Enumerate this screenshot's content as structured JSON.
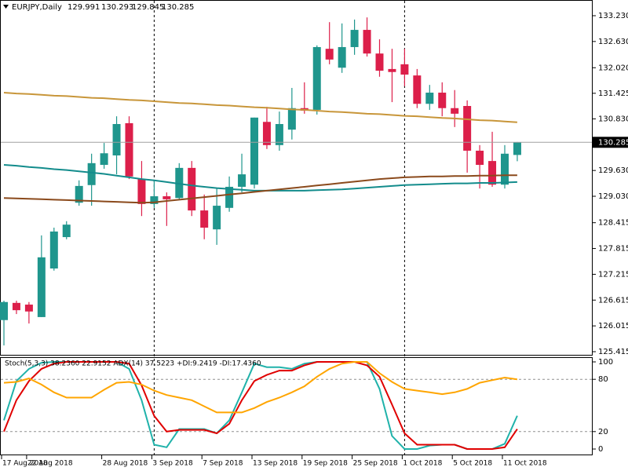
{
  "chart_data": [
    {
      "type": "candlestick",
      "title": "EURJPY,Daily",
      "categories": [
        "17 Aug 2018",
        null,
        "22 Aug 2018",
        null,
        null,
        null,
        null,
        null,
        "28 Aug 2018",
        null,
        null,
        null,
        "3 Sep 2018",
        null,
        null,
        null,
        "7 Sep 2018",
        null,
        null,
        null,
        "13 Sep 2018",
        null,
        null,
        null,
        "19 Sep 2018",
        null,
        null,
        null,
        "25 Sep 2018",
        null,
        null,
        null,
        "1 Oct 2018",
        null,
        null,
        null,
        "5 Oct 2018",
        null,
        null,
        null,
        "11 Oct 2018",
        null
      ],
      "open": [
        126.15,
        126.55,
        126.51,
        126.22,
        127.35,
        128.08,
        128.88,
        129.29,
        129.76,
        129.98,
        130.73,
        129.43,
        128.85,
        129.03,
        128.99,
        129.69,
        128.7,
        128.26,
        128.76,
        129.25,
        129.3,
        130.76,
        130.22,
        130.58,
        131.08,
        131.04,
        132.46,
        132.02,
        132.5,
        132.9,
        132.35,
        131.99,
        132.1,
        131.84,
        131.18,
        131.44,
        131.08,
        131.13,
        130.09,
        129.85,
        129.3,
        129.991
      ],
      "high": [
        126.6,
        126.6,
        126.57,
        128.12,
        128.3,
        128.45,
        129.4,
        130.02,
        130.27,
        130.89,
        130.89,
        129.85,
        129.4,
        129.12,
        129.8,
        129.85,
        129.07,
        129.21,
        129.49,
        130.02,
        130.86,
        131.11,
        131.0,
        131.55,
        131.68,
        132.54,
        133.08,
        133.05,
        133.14,
        133.19,
        132.68,
        132.46,
        132.46,
        131.99,
        131.62,
        131.68,
        131.5,
        131.26,
        130.22,
        130.53,
        130.22,
        130.293
      ],
      "low": [
        125.56,
        126.29,
        126.07,
        126.22,
        127.3,
        128.03,
        128.81,
        128.81,
        129.67,
        129.54,
        129.43,
        128.57,
        128.76,
        128.34,
        128.94,
        128.57,
        128.03,
        127.9,
        128.67,
        129.12,
        129.21,
        130.13,
        130.09,
        130.35,
        130.95,
        130.93,
        132.1,
        131.9,
        132.32,
        132.28,
        131.81,
        131.22,
        131.59,
        131.08,
        131.04,
        130.89,
        130.64,
        129.58,
        129.21,
        129.25,
        129.21,
        129.845
      ],
      "close": [
        126.57,
        126.38,
        126.35,
        127.61,
        128.21,
        128.37,
        129.27,
        129.8,
        130.03,
        130.71,
        129.49,
        128.85,
        129.03,
        128.96,
        129.69,
        128.7,
        128.3,
        128.81,
        129.25,
        129.54,
        130.86,
        130.22,
        130.71,
        131.08,
        131.02,
        132.5,
        132.21,
        132.5,
        132.9,
        132.35,
        131.95,
        131.92,
        131.86,
        131.18,
        131.44,
        131.08,
        130.95,
        130.09,
        129.76,
        129.3,
        130.02,
        130.285
      ],
      "up_color": "#1f968d",
      "down_color": "#dc1f4a",
      "series": [
        {
          "color": "#c8963a",
          "values": [
            131.44,
            131.42,
            131.41,
            131.39,
            131.37,
            131.36,
            131.34,
            131.32,
            131.31,
            131.29,
            131.27,
            131.26,
            131.24,
            131.22,
            131.2,
            131.19,
            131.17,
            131.15,
            131.14,
            131.12,
            131.1,
            131.09,
            131.07,
            131.05,
            131.04,
            131.02,
            131.0,
            130.99,
            130.97,
            130.95,
            130.94,
            130.92,
            130.9,
            130.89,
            130.87,
            130.85,
            130.84,
            130.82,
            130.8,
            130.79,
            130.77,
            130.75
          ]
        },
        {
          "color": "#138c8c",
          "values": [
            129.76,
            129.74,
            129.71,
            129.69,
            129.66,
            129.64,
            129.61,
            129.58,
            129.55,
            129.51,
            129.47,
            129.43,
            129.4,
            129.36,
            129.32,
            129.28,
            129.25,
            129.22,
            129.2,
            129.18,
            129.16,
            129.16,
            129.16,
            129.16,
            129.16,
            129.17,
            129.18,
            129.19,
            129.21,
            129.23,
            129.25,
            129.27,
            129.29,
            129.3,
            129.31,
            129.32,
            129.33,
            129.33,
            129.34,
            129.34,
            129.35,
            129.36
          ]
        },
        {
          "color": "#8b4a1c",
          "values": [
            128.99,
            128.98,
            128.97,
            128.96,
            128.95,
            128.94,
            128.93,
            128.92,
            128.91,
            128.9,
            128.89,
            128.88,
            128.89,
            128.92,
            128.95,
            128.98,
            129.01,
            129.04,
            129.07,
            129.1,
            129.13,
            129.16,
            129.19,
            129.22,
            129.25,
            129.28,
            129.31,
            129.34,
            129.37,
            129.4,
            129.43,
            129.45,
            129.47,
            129.48,
            129.49,
            129.49,
            129.5,
            129.5,
            129.51,
            129.51,
            129.52,
            129.52
          ]
        }
      ],
      "ylim": [
        125.342,
        133.595
      ],
      "yticks": [
        {
          "value": 133.23,
          "label": "133.230"
        },
        {
          "value": 132.63,
          "label": "132.630"
        },
        {
          "value": 132.02,
          "label": "132.020"
        },
        {
          "value": 131.425,
          "label": "131.425"
        },
        {
          "value": 130.83,
          "label": "130.830"
        },
        {
          "value": 129.63,
          "label": "129.630"
        },
        {
          "value": 129.03,
          "label": "129.030"
        },
        {
          "value": 128.415,
          "label": "128.415"
        },
        {
          "value": 127.815,
          "label": "127.815"
        },
        {
          "value": 127.215,
          "label": "127.215"
        },
        {
          "value": 126.615,
          "label": "126.615"
        },
        {
          "value": 126.015,
          "label": "126.015"
        },
        {
          "value": 125.415,
          "label": "125.415"
        }
      ]
    },
    {
      "type": "line",
      "title": "Stoch(5,3,3) 38.2360 22.9152 ADX(14) 37.5223 +DI:9.2419 -DI:17.4360",
      "series": [
        {
          "color": "#20b2aa",
          "values": [
            33,
            78,
            92,
            99,
            100,
            100,
            100,
            100,
            100,
            100,
            92,
            56,
            5,
            2,
            23,
            23,
            23,
            18,
            33,
            65,
            98,
            94,
            94,
            92,
            98,
            100,
            100,
            100,
            100,
            100,
            69,
            15,
            0,
            0,
            4,
            5,
            5,
            0,
            0,
            0,
            6,
            38.236
          ]
        },
        {
          "color": "#e00000",
          "values": [
            20,
            56,
            78,
            92,
            98,
            100,
            100,
            100,
            100,
            100,
            98,
            73,
            38,
            20,
            22,
            22,
            22,
            18,
            29,
            56,
            78,
            85,
            90,
            90,
            96,
            100,
            100,
            100,
            100,
            96,
            83,
            51,
            18,
            5,
            5,
            5,
            5,
            0,
            0,
            0,
            2,
            22.9152
          ]
        },
        {
          "color": "#ffa500",
          "values": [
            76,
            77,
            81,
            74,
            65,
            59,
            59,
            59,
            68,
            76,
            77,
            74,
            67,
            62,
            59,
            56,
            49,
            42,
            42,
            42,
            47,
            54,
            59,
            65,
            72,
            83,
            92,
            98,
            100,
            100,
            87,
            77,
            69,
            67,
            65,
            63,
            65,
            69,
            76,
            79,
            82,
            80
          ]
        }
      ],
      "ylim": [
        -7.2,
        105.4
      ],
      "yticks": [
        100,
        80,
        20,
        0
      ],
      "levels": [
        80,
        20
      ]
    }
  ]
}
